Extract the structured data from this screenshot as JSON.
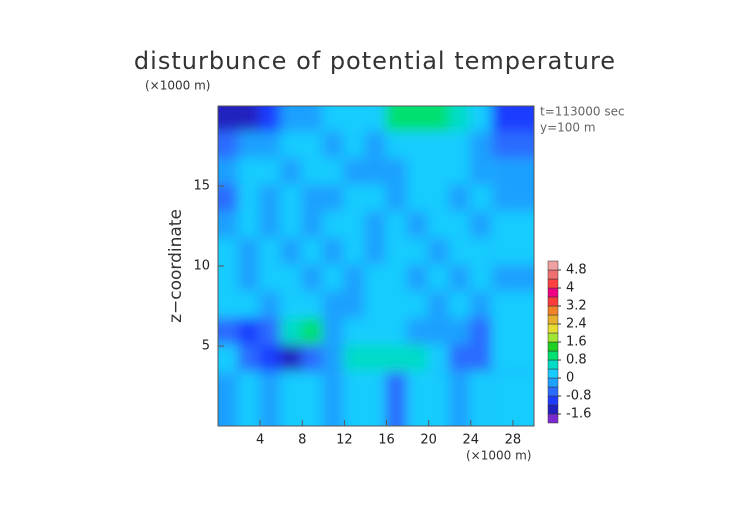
{
  "chart_data": {
    "type": "contour",
    "title": "disturbunce of potential temperature",
    "y_unit": "(×1000 m)",
    "x_unit": "(×1000 m)",
    "ylabel": "z−coordinate",
    "annotations": [
      "t=113000 sec",
      "y=100 m"
    ],
    "xlim": [
      0,
      30
    ],
    "ylim": [
      0,
      20
    ],
    "xticks": [
      4,
      8,
      12,
      16,
      20,
      24,
      28
    ],
    "yticks": [
      5,
      10,
      15
    ],
    "x": [
      1,
      3,
      5,
      7,
      9,
      11,
      13,
      15,
      17,
      19,
      21,
      23,
      25,
      27,
      29
    ],
    "y": [
      19.17,
      17.5,
      15.83,
      14.17,
      12.5,
      10.83,
      9.17,
      7.5,
      5.83,
      4.17,
      2.5,
      0.83
    ],
    "z": [
      [
        -1.4,
        -1.6,
        -1.2,
        -0.4,
        -0.2,
        0,
        0.2,
        0.2,
        0.8,
        1.0,
        0.8,
        0.4,
        0.2,
        -0.4,
        -1.0
      ],
      [
        -0.6,
        -0.4,
        -0.2,
        0.2,
        0,
        -0.2,
        0.2,
        -0.4,
        0.2,
        0.2,
        0.2,
        0,
        -0.2,
        -0.2,
        -0.6
      ],
      [
        -0.4,
        0.2,
        0,
        -0.2,
        0.2,
        0.2,
        -0.2,
        -0.2,
        -0.2,
        0.2,
        0.2,
        0,
        -0.2,
        0.2,
        -0.2
      ],
      [
        -0.6,
        0.2,
        -0.2,
        0.2,
        -0.2,
        -0.2,
        0.2,
        0.2,
        -0.2,
        0.2,
        0,
        -0.2,
        0.2,
        0,
        -0.2
      ],
      [
        -0.2,
        0.2,
        -0.2,
        0.2,
        -0.2,
        0.2,
        0.2,
        -0.2,
        0.2,
        -0.2,
        0.2,
        0.2,
        -0.2,
        0.2,
        0
      ],
      [
        0,
        -0.2,
        0.2,
        -0.2,
        0.2,
        -0.2,
        0.2,
        -0.2,
        0.2,
        0.2,
        -0.2,
        0.2,
        0,
        -0.2,
        0.2
      ],
      [
        0.2,
        -0.2,
        0.2,
        0.2,
        -0.2,
        0.2,
        -0.4,
        0.2,
        0.2,
        -0.2,
        0.2,
        -0.2,
        0.2,
        0.2,
        -0.2
      ],
      [
        0.2,
        0.2,
        -0.2,
        0.2,
        0.2,
        -0.2,
        -0.4,
        0.2,
        0.2,
        0.2,
        -0.2,
        0.2,
        -0.2,
        0.2,
        0.2
      ],
      [
        -0.8,
        -1.0,
        -0.6,
        0.6,
        0.8,
        -0.2,
        0.2,
        0.2,
        0.2,
        -0.2,
        -0.4,
        -0.2,
        -0.6,
        -0.2,
        0.2
      ],
      [
        0.2,
        -0.6,
        -1.2,
        -1.4,
        -0.8,
        -0.2,
        0.4,
        0.6,
        0.4,
        0.4,
        0.2,
        -0.6,
        -0.6,
        -0.2,
        0.2
      ],
      [
        0.2,
        0.2,
        -0.2,
        0.2,
        -0.4,
        -0.2,
        0.2,
        0.2,
        -0.2,
        0.2,
        -0.4,
        0.2,
        0.6,
        0.2,
        -0.2
      ],
      [
        -0.2,
        0.2,
        -0.2,
        0.2,
        0.2,
        -0.2,
        0.2,
        0.2,
        -0.6,
        0.2,
        0.2,
        -0.2,
        0.2,
        -0.4,
        0.2
      ]
    ],
    "levels": [
      -2.0,
      -1.6,
      -1.2,
      -0.8,
      -0.4,
      0,
      0.4,
      0.8,
      1.2,
      1.6,
      2.0,
      2.4,
      2.8,
      3.2,
      3.6,
      4.0,
      4.4,
      4.8,
      5.2
    ],
    "colors": [
      "#7a2bd0",
      "#2020c0",
      "#1e3cff",
      "#2a6cff",
      "#1ea0ff",
      "#18ccff",
      "#00dcc8",
      "#00e070",
      "#20d020",
      "#a0e632",
      "#e6dc32",
      "#e6af2d",
      "#f08228",
      "#fa3c3c",
      "#f00082",
      "#ff4040",
      "#f07070",
      "#f0a0a0"
    ],
    "colorbar_ticks": [
      -1.6,
      -0.8,
      0,
      0.8,
      1.6,
      2.4,
      3.2,
      4,
      4.8
    ]
  }
}
